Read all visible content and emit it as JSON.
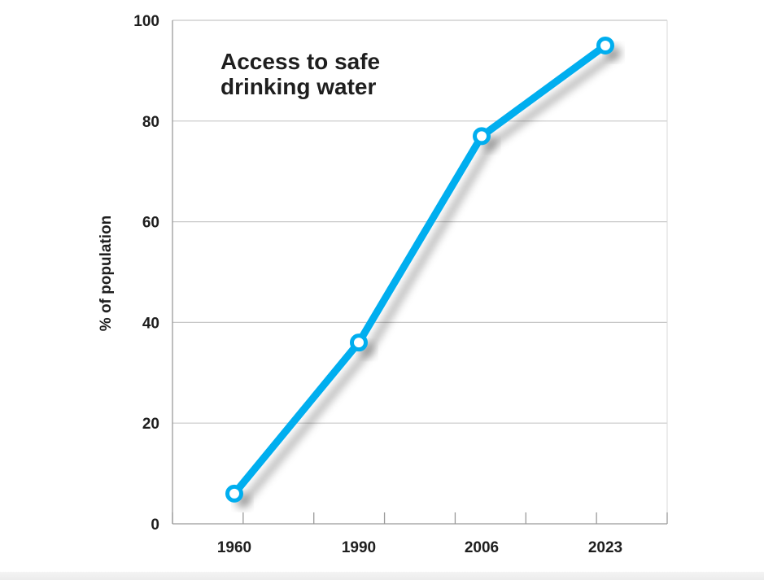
{
  "chart_data": {
    "type": "line",
    "title_lines": [
      "Access to safe",
      "drinking water"
    ],
    "xlabel": "",
    "ylabel": "% of population",
    "categories": [
      "1960",
      "1990",
      "2006",
      "2023"
    ],
    "x_ticks": [
      1950,
      1960,
      1970,
      1980,
      1990,
      2000,
      2010,
      2020
    ],
    "series": [
      {
        "values": [
          6,
          36,
          77,
          95
        ],
        "color": "#00aeef"
      }
    ],
    "ylim": [
      0,
      100
    ],
    "yticks": [
      0,
      20,
      40,
      60,
      80,
      100
    ],
    "grid": true
  }
}
